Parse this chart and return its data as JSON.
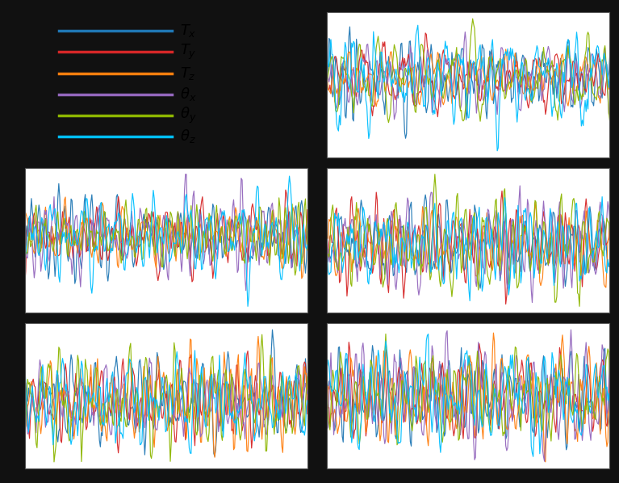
{
  "colors": [
    "#1f77b4",
    "#d62728",
    "#ff7f0e",
    "#9467bd",
    "#8db600",
    "#00bfff"
  ],
  "labels": [
    "$T_x$",
    "$T_y$",
    "$T_z$",
    "$\\theta_x$",
    "$\\theta_y$",
    "$\\theta_z$"
  ],
  "n_points": 300,
  "background_color": "#ffffff",
  "grid_color": "#aaaaaa",
  "fig_bg": "#111111"
}
